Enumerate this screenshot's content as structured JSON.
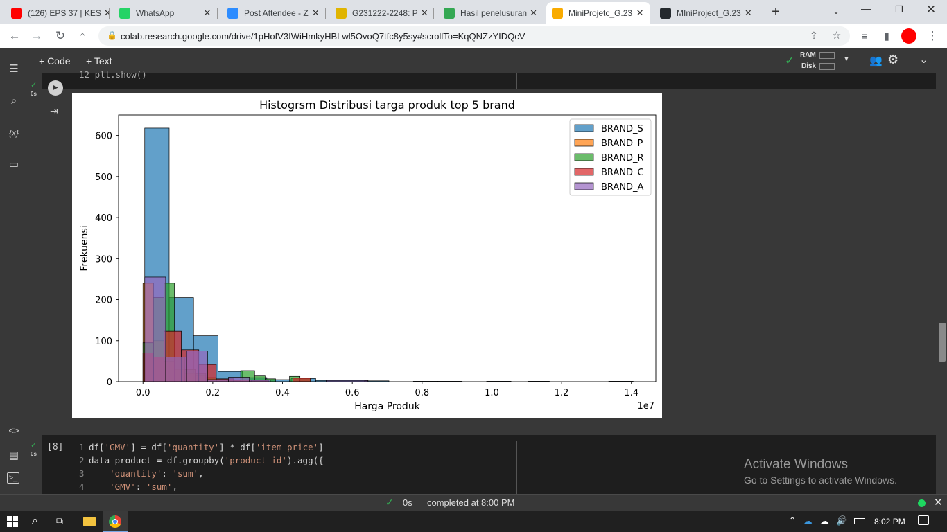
{
  "tabs": [
    {
      "title": "(126) EPS 37 | KES",
      "icon": "youtube-icon",
      "color": "#ff0000"
    },
    {
      "title": "WhatsApp",
      "icon": "whatsapp-icon",
      "color": "#25d366"
    },
    {
      "title": "Post Attendee - Z",
      "icon": "zoom-icon",
      "color": "#2d8cff"
    },
    {
      "title": "G231222-2248: P",
      "icon": "sim-icon",
      "color": "#e0b400"
    },
    {
      "title": "Hasil penelusuran",
      "icon": "google-drive-icon",
      "color": "#34a853"
    },
    {
      "title": "MiniProjetc_G.23",
      "icon": "colab-icon",
      "color": "#f9ab00"
    },
    {
      "title": "MIniProject_G.23",
      "icon": "github-icon",
      "color": "#24292e"
    }
  ],
  "address": {
    "url": "colab.research.google.com/drive/1pHofV3IWiHmkyHBLwl5OvoQ7tfc8y5sy#scrollTo=KqQNZzYIDQcV"
  },
  "colab": {
    "add_code": "+ Code",
    "add_text": "+ Text",
    "ram_label": "RAM",
    "disk_label": "Disk",
    "cell_time": "0s",
    "prev_cell_code": "12 plt.show()",
    "cell8_index": "[8]",
    "cell8_time": "0s",
    "cell8_lines": [
      {
        "n": "1",
        "code": "df['GMV'] = df['quantity'] * df['item_price']"
      },
      {
        "n": "2",
        "code": "data_product = df.groupby('product_id').agg({"
      },
      {
        "n": "3",
        "code": "    'quantity': 'sum',"
      },
      {
        "n": "4",
        "code": "    'GMV': 'sum',"
      }
    ]
  },
  "status": {
    "time": "0s",
    "completed": "completed at 8:00 PM"
  },
  "watermark": {
    "title": "Activate Windows",
    "subtitle": "Go to Settings to activate Windows."
  },
  "taskbar": {
    "clock": "8:02 PM"
  },
  "chart_data": {
    "type": "bar",
    "title": "Histogrsm Distribusi targa produk top 5 brand",
    "xlabel": "Harga Produk",
    "ylabel": "Frekuensi",
    "x_offset_label": "1e7",
    "xlim": [
      -0.07,
      1.47
    ],
    "ylim": [
      0,
      650
    ],
    "xticks": [
      0.0,
      0.2,
      0.4,
      0.6,
      0.8,
      1.0,
      1.2,
      1.4
    ],
    "yticks": [
      0,
      100,
      200,
      300,
      400,
      500,
      600
    ],
    "legend_position": "top-right",
    "series": [
      {
        "name": "BRAND_S",
        "color": "#1f77b4",
        "bins": [
          [
            0.005,
            0.075,
            618
          ],
          [
            0.075,
            0.145,
            205
          ],
          [
            0.145,
            0.215,
            112
          ],
          [
            0.215,
            0.285,
            25
          ],
          [
            0.285,
            0.355,
            10
          ],
          [
            0.355,
            0.425,
            5
          ],
          [
            0.425,
            0.495,
            8
          ],
          [
            0.495,
            0.565,
            3
          ],
          [
            0.565,
            0.635,
            4
          ],
          [
            0.635,
            0.705,
            2
          ],
          [
            0.775,
            0.845,
            1
          ],
          [
            0.845,
            0.915,
            1
          ],
          [
            0.985,
            1.055,
            1
          ],
          [
            1.105,
            1.165,
            1
          ],
          [
            1.335,
            1.405,
            1
          ]
        ]
      },
      {
        "name": "BRAND_P",
        "color": "#ff7f0e",
        "bins": [
          [
            0.0,
            0.03,
            240
          ],
          [
            0.03,
            0.06,
            100
          ],
          [
            0.06,
            0.09,
            50
          ],
          [
            0.09,
            0.12,
            30
          ],
          [
            0.12,
            0.15,
            20
          ],
          [
            0.15,
            0.18,
            15
          ]
        ]
      },
      {
        "name": "BRAND_R",
        "color": "#2ca02c",
        "bins": [
          [
            0.0,
            0.03,
            95
          ],
          [
            0.03,
            0.06,
            205
          ],
          [
            0.06,
            0.09,
            240
          ],
          [
            0.09,
            0.12,
            60
          ],
          [
            0.12,
            0.15,
            30
          ],
          [
            0.15,
            0.18,
            20
          ],
          [
            0.18,
            0.21,
            10
          ],
          [
            0.21,
            0.24,
            4
          ],
          [
            0.24,
            0.28,
            3
          ],
          [
            0.28,
            0.32,
            27
          ],
          [
            0.32,
            0.35,
            14
          ],
          [
            0.35,
            0.38,
            7
          ],
          [
            0.42,
            0.45,
            13
          ],
          [
            0.45,
            0.48,
            8
          ]
        ]
      },
      {
        "name": "BRAND_C",
        "color": "#d62728",
        "bins": [
          [
            0.0,
            0.03,
            70
          ],
          [
            0.03,
            0.06,
            60
          ],
          [
            0.06,
            0.11,
            123
          ],
          [
            0.11,
            0.16,
            78
          ],
          [
            0.16,
            0.21,
            42
          ],
          [
            0.21,
            0.26,
            7
          ],
          [
            0.26,
            0.31,
            4
          ],
          [
            0.31,
            0.36,
            3
          ],
          [
            0.43,
            0.48,
            9
          ]
        ]
      },
      {
        "name": "BRAND_A",
        "color": "#9467bd",
        "bins": [
          [
            0.005,
            0.065,
            255
          ],
          [
            0.065,
            0.125,
            60
          ],
          [
            0.125,
            0.185,
            75
          ],
          [
            0.185,
            0.245,
            5
          ],
          [
            0.245,
            0.305,
            11
          ],
          [
            0.305,
            0.365,
            4
          ],
          [
            0.525,
            0.585,
            3
          ],
          [
            0.585,
            0.645,
            3
          ]
        ]
      }
    ]
  }
}
